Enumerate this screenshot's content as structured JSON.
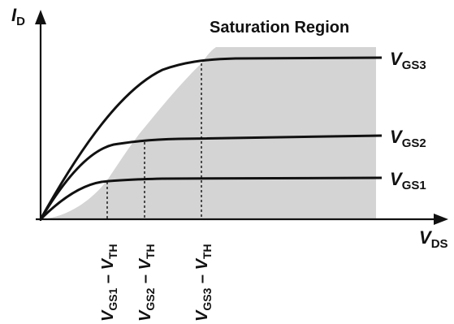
{
  "axes": {
    "y_var": "I",
    "y_sub": "D",
    "x_var": "V",
    "x_sub": "DS"
  },
  "region": {
    "title": "Saturation Region"
  },
  "curves": [
    {
      "var": "V",
      "sub": "GS3"
    },
    {
      "var": "V",
      "sub": "GS2"
    },
    {
      "var": "V",
      "sub": "GS1"
    }
  ],
  "markers": [
    {
      "v1": "V",
      "s1": "GS1",
      "op": " – ",
      "v2": "V",
      "s2": "TH"
    },
    {
      "v1": "V",
      "s1": "GS2",
      "op": " – ",
      "v2": "V",
      "s2": "TH"
    },
    {
      "v1": "V",
      "s1": "GS3",
      "op": " – ",
      "v2": "V",
      "s2": "TH"
    }
  ],
  "colors": {
    "region_fill": "#d4d4d4",
    "stroke": "#111111"
  }
}
